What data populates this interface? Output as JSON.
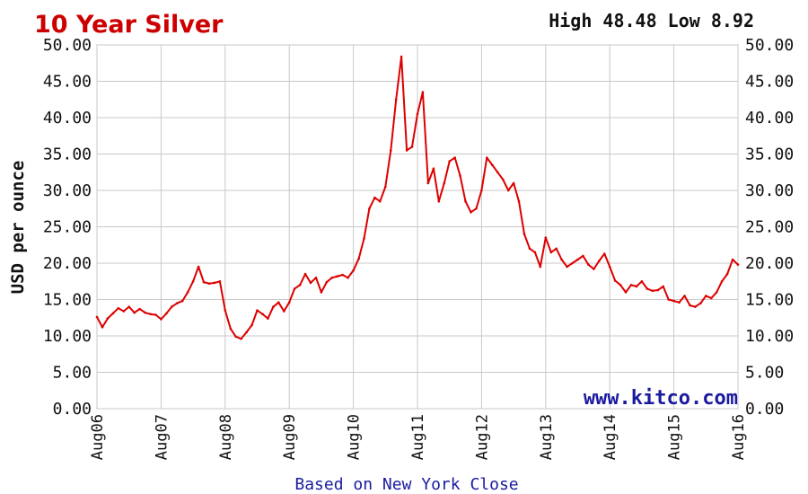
{
  "chart_data": {
    "type": "line",
    "title": "10 Year Silver",
    "high_low": "High 48.48 Low 8.92",
    "ylabel": "USD per ounce",
    "xlabel": "Based on New York Close",
    "watermark": "www.kitco.com",
    "ylim": [
      0,
      50
    ],
    "xlim": [
      "2006-08",
      "2016-08"
    ],
    "y_ticks": [
      "0.00",
      "5.00",
      "10.00",
      "15.00",
      "20.00",
      "25.00",
      "30.00",
      "35.00",
      "40.00",
      "45.00",
      "50.00"
    ],
    "x_ticks": [
      "Aug06",
      "Aug07",
      "Aug08",
      "Aug09",
      "Aug10",
      "Aug11",
      "Aug12",
      "Aug13",
      "Aug14",
      "Aug15",
      "Aug16"
    ],
    "grid": true,
    "colors": {
      "title": "#cc0000",
      "line": "#dd0000",
      "grid": "#c8c8c8",
      "axis_text": "#111111",
      "footer": "#1a1aa0",
      "watermark": "#1a1aa0"
    },
    "series": [
      {
        "x": [
          "2006-08",
          "2006-09",
          "2006-10",
          "2006-11",
          "2006-12",
          "2007-01",
          "2007-02",
          "2007-03",
          "2007-04",
          "2007-05",
          "2007-06",
          "2007-07",
          "2007-08",
          "2007-09",
          "2007-10",
          "2007-11",
          "2007-12",
          "2008-01",
          "2008-02",
          "2008-03",
          "2008-04",
          "2008-05",
          "2008-06",
          "2008-07",
          "2008-08",
          "2008-09",
          "2008-10",
          "2008-11",
          "2008-12",
          "2009-01",
          "2009-02",
          "2009-03",
          "2009-04",
          "2009-05",
          "2009-06",
          "2009-07",
          "2009-08",
          "2009-09",
          "2009-10",
          "2009-11",
          "2009-12",
          "2010-01",
          "2010-02",
          "2010-03",
          "2010-04",
          "2010-05",
          "2010-06",
          "2010-07",
          "2010-08",
          "2010-09",
          "2010-10",
          "2010-11",
          "2010-12",
          "2011-01",
          "2011-02",
          "2011-03",
          "2011-04",
          "2011-05",
          "2011-06",
          "2011-07",
          "2011-08",
          "2011-09",
          "2011-10",
          "2011-11",
          "2011-12",
          "2012-01",
          "2012-02",
          "2012-03",
          "2012-04",
          "2012-05",
          "2012-06",
          "2012-07",
          "2012-08",
          "2012-09",
          "2012-10",
          "2012-11",
          "2012-12",
          "2013-01",
          "2013-02",
          "2013-03",
          "2013-04",
          "2013-05",
          "2013-06",
          "2013-07",
          "2013-08",
          "2013-09",
          "2013-10",
          "2013-11",
          "2013-12",
          "2014-01",
          "2014-02",
          "2014-03",
          "2014-04",
          "2014-05",
          "2014-06",
          "2014-07",
          "2014-08",
          "2014-09",
          "2014-10",
          "2014-11",
          "2014-12",
          "2015-01",
          "2015-02",
          "2015-03",
          "2015-04",
          "2015-05",
          "2015-06",
          "2015-07",
          "2015-08",
          "2015-09",
          "2015-10",
          "2015-11",
          "2015-12",
          "2016-01",
          "2016-02",
          "2016-03",
          "2016-04",
          "2016-05",
          "2016-06",
          "2016-07",
          "2016-08"
        ],
        "y": [
          12.6,
          11.2,
          12.4,
          13.1,
          13.8,
          13.4,
          14.0,
          13.2,
          13.7,
          13.2,
          13.0,
          12.9,
          12.3,
          13.1,
          14.0,
          14.5,
          14.8,
          16.0,
          17.5,
          19.5,
          17.4,
          17.2,
          17.3,
          17.5,
          13.5,
          11.0,
          9.9,
          9.6,
          10.5,
          11.5,
          13.5,
          13.0,
          12.4,
          14.0,
          14.6,
          13.4,
          14.6,
          16.5,
          17.0,
          18.5,
          17.3,
          18.0,
          16.0,
          17.4,
          18.0,
          18.2,
          18.4,
          18.0,
          19.0,
          20.6,
          23.4,
          27.5,
          29.0,
          28.5,
          30.5,
          35.5,
          42.5,
          48.4,
          35.5,
          36.0,
          40.5,
          43.5,
          31.0,
          33.0,
          28.5,
          31.0,
          34.0,
          34.5,
          32.0,
          28.5,
          27.0,
          27.5,
          30.0,
          34.5,
          33.5,
          32.5,
          31.5,
          30.0,
          31.0,
          28.5,
          24.0,
          22.0,
          21.5,
          19.5,
          23.5,
          21.5,
          22.0,
          20.5,
          19.5,
          20.0,
          20.5,
          21.0,
          19.8,
          19.2,
          20.3,
          21.3,
          19.5,
          17.6,
          17.0,
          16.0,
          17.0,
          16.8,
          17.5,
          16.5,
          16.2,
          16.3,
          16.8,
          15.0,
          14.8,
          14.6,
          15.5,
          14.2,
          14.0,
          14.5,
          15.5,
          15.2,
          16.0,
          17.5,
          18.5,
          20.5,
          19.8
        ]
      }
    ]
  }
}
